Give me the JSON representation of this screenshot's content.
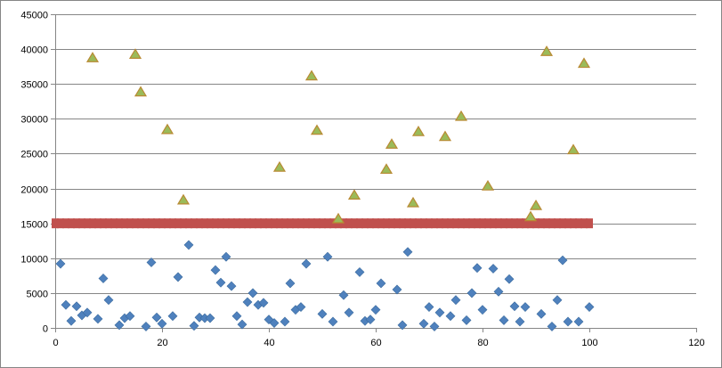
{
  "chart_data": {
    "type": "scatter",
    "title": "",
    "xlabel": "",
    "ylabel": "",
    "xlim": [
      0,
      120
    ],
    "ylim": [
      0,
      45000
    ],
    "x_ticks": [
      0,
      20,
      40,
      60,
      80,
      100,
      120
    ],
    "y_ticks": [
      0,
      5000,
      10000,
      15000,
      20000,
      25000,
      30000,
      35000,
      40000,
      45000
    ],
    "x_tick_labels": [
      "0",
      "20",
      "40",
      "60",
      "80",
      "100",
      "120"
    ],
    "y_tick_labels": [
      "0",
      "5000",
      "10000",
      "15000",
      "20000",
      "25000",
      "30000",
      "35000",
      "40000",
      "45000"
    ],
    "grid": "horizontal-major",
    "legend": "none",
    "series": [
      {
        "marker": "diamond",
        "color": "#4F81BD",
        "points": [
          [
            1,
            9200
          ],
          [
            2,
            3300
          ],
          [
            3,
            1000
          ],
          [
            4,
            3100
          ],
          [
            5,
            1800
          ],
          [
            6,
            2200
          ],
          [
            8,
            1300
          ],
          [
            9,
            7100
          ],
          [
            10,
            4000
          ],
          [
            12,
            400
          ],
          [
            13,
            1400
          ],
          [
            14,
            1700
          ],
          [
            17,
            200
          ],
          [
            18,
            9400
          ],
          [
            19,
            1500
          ],
          [
            20,
            600
          ],
          [
            22,
            1700
          ],
          [
            23,
            7300
          ],
          [
            25,
            11900
          ],
          [
            26,
            300
          ],
          [
            27,
            1500
          ],
          [
            28,
            1400
          ],
          [
            29,
            1400
          ],
          [
            30,
            8300
          ],
          [
            31,
            6500
          ],
          [
            32,
            10200
          ],
          [
            33,
            6000
          ],
          [
            34,
            1700
          ],
          [
            35,
            500
          ],
          [
            36,
            3700
          ],
          [
            37,
            5000
          ],
          [
            38,
            3300
          ],
          [
            39,
            3600
          ],
          [
            40,
            1200
          ],
          [
            41,
            700
          ],
          [
            43,
            900
          ],
          [
            44,
            6400
          ],
          [
            45,
            2600
          ],
          [
            46,
            3000
          ],
          [
            47,
            9200
          ],
          [
            50,
            2000
          ],
          [
            51,
            10200
          ],
          [
            52,
            900
          ],
          [
            54,
            4700
          ],
          [
            55,
            2200
          ],
          [
            57,
            8000
          ],
          [
            58,
            1000
          ],
          [
            59,
            1200
          ],
          [
            60,
            2600
          ],
          [
            61,
            6400
          ],
          [
            64,
            5500
          ],
          [
            65,
            400
          ],
          [
            66,
            10900
          ],
          [
            69,
            600
          ],
          [
            70,
            3000
          ],
          [
            71,
            200
          ],
          [
            72,
            2200
          ],
          [
            74,
            1700
          ],
          [
            75,
            4000
          ],
          [
            77,
            1100
          ],
          [
            78,
            5000
          ],
          [
            79,
            8600
          ],
          [
            80,
            2600
          ],
          [
            82,
            8500
          ],
          [
            83,
            5200
          ],
          [
            84,
            1100
          ],
          [
            85,
            7000
          ],
          [
            86,
            3100
          ],
          [
            87,
            900
          ],
          [
            88,
            3000
          ],
          [
            91,
            2000
          ],
          [
            93,
            200
          ],
          [
            94,
            4000
          ],
          [
            95,
            9700
          ],
          [
            96,
            900
          ],
          [
            98,
            900
          ],
          [
            100,
            3000
          ]
        ]
      },
      {
        "marker": "bar",
        "color": "#C0504D",
        "points": [
          [
            0,
            15000
          ],
          [
            1,
            15000
          ],
          [
            2,
            15000
          ],
          [
            3,
            15000
          ],
          [
            4,
            15000
          ],
          [
            5,
            15000
          ],
          [
            6,
            15000
          ],
          [
            7,
            15000
          ],
          [
            8,
            15000
          ],
          [
            9,
            15000
          ],
          [
            10,
            15000
          ],
          [
            11,
            15000
          ],
          [
            12,
            15000
          ],
          [
            13,
            15000
          ],
          [
            14,
            15000
          ],
          [
            15,
            15000
          ],
          [
            16,
            15000
          ],
          [
            17,
            15000
          ],
          [
            18,
            15000
          ],
          [
            19,
            15000
          ],
          [
            20,
            15000
          ],
          [
            21,
            15000
          ],
          [
            22,
            15000
          ],
          [
            23,
            15000
          ],
          [
            24,
            15000
          ],
          [
            25,
            15000
          ],
          [
            26,
            15000
          ],
          [
            27,
            15000
          ],
          [
            28,
            15000
          ],
          [
            29,
            15000
          ],
          [
            30,
            15000
          ],
          [
            31,
            15000
          ],
          [
            32,
            15000
          ],
          [
            33,
            15000
          ],
          [
            34,
            15000
          ],
          [
            35,
            15000
          ],
          [
            36,
            15000
          ],
          [
            37,
            15000
          ],
          [
            38,
            15000
          ],
          [
            39,
            15000
          ],
          [
            40,
            15000
          ],
          [
            41,
            15000
          ],
          [
            42,
            15000
          ],
          [
            43,
            15000
          ],
          [
            44,
            15000
          ],
          [
            45,
            15000
          ],
          [
            46,
            15000
          ],
          [
            47,
            15000
          ],
          [
            48,
            15000
          ],
          [
            49,
            15000
          ],
          [
            50,
            15000
          ],
          [
            51,
            15000
          ],
          [
            52,
            15000
          ],
          [
            53,
            15000
          ],
          [
            54,
            15000
          ],
          [
            55,
            15000
          ],
          [
            56,
            15000
          ],
          [
            57,
            15000
          ],
          [
            58,
            15000
          ],
          [
            59,
            15000
          ],
          [
            60,
            15000
          ],
          [
            61,
            15000
          ],
          [
            62,
            15000
          ],
          [
            63,
            15000
          ],
          [
            64,
            15000
          ],
          [
            65,
            15000
          ],
          [
            66,
            15000
          ],
          [
            67,
            15000
          ],
          [
            68,
            15000
          ],
          [
            69,
            15000
          ],
          [
            70,
            15000
          ],
          [
            71,
            15000
          ],
          [
            72,
            15000
          ],
          [
            73,
            15000
          ],
          [
            74,
            15000
          ],
          [
            75,
            15000
          ],
          [
            76,
            15000
          ],
          [
            77,
            15000
          ],
          [
            78,
            15000
          ],
          [
            79,
            15000
          ],
          [
            80,
            15000
          ],
          [
            81,
            15000
          ],
          [
            82,
            15000
          ],
          [
            83,
            15000
          ],
          [
            84,
            15000
          ],
          [
            85,
            15000
          ],
          [
            86,
            15000
          ],
          [
            87,
            15000
          ],
          [
            88,
            15000
          ],
          [
            89,
            15000
          ],
          [
            90,
            15000
          ],
          [
            91,
            15000
          ],
          [
            92,
            15000
          ],
          [
            93,
            15000
          ],
          [
            94,
            15000
          ],
          [
            95,
            15000
          ],
          [
            96,
            15000
          ],
          [
            97,
            15000
          ],
          [
            98,
            15000
          ],
          [
            99,
            15000
          ],
          [
            100,
            15000
          ]
        ]
      },
      {
        "marker": "triangle",
        "color": "#9BBB59",
        "points": [
          [
            7,
            38700
          ],
          [
            15,
            39200
          ],
          [
            16,
            33800
          ],
          [
            21,
            28400
          ],
          [
            24,
            18300
          ],
          [
            42,
            23000
          ],
          [
            48,
            36100
          ],
          [
            49,
            28300
          ],
          [
            53,
            15600
          ],
          [
            56,
            19000
          ],
          [
            62,
            22700
          ],
          [
            63,
            26300
          ],
          [
            67,
            17900
          ],
          [
            68,
            28100
          ],
          [
            73,
            27400
          ],
          [
            76,
            30300
          ],
          [
            81,
            20300
          ],
          [
            89,
            15900
          ],
          [
            90,
            17500
          ],
          [
            92,
            39600
          ],
          [
            97,
            25500
          ],
          [
            99,
            37900
          ]
        ]
      }
    ]
  }
}
